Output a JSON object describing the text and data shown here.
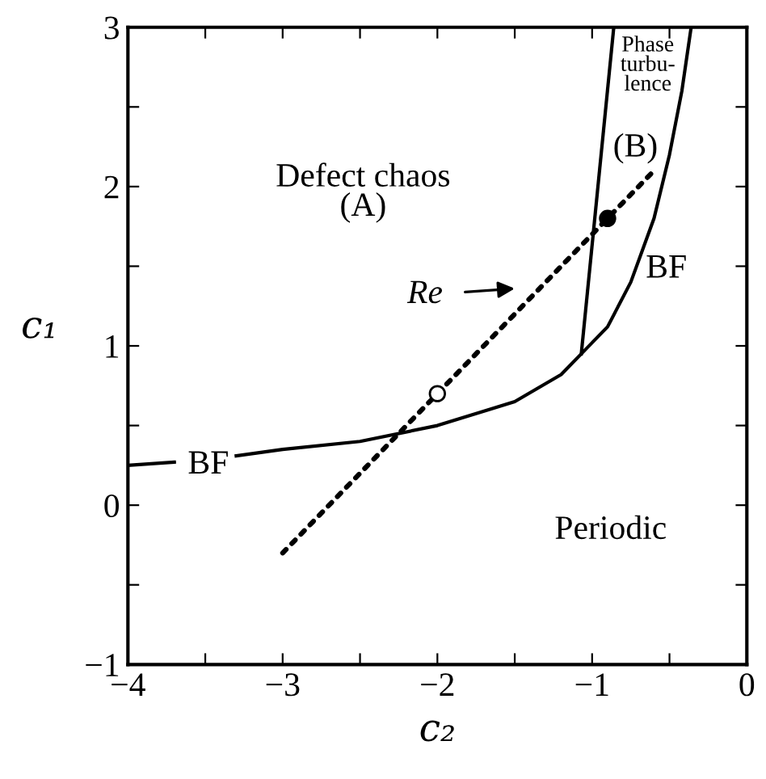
{
  "chart_data": {
    "type": "line",
    "xlabel": "c₂",
    "ylabel": "c₁",
    "xlim": [
      -4,
      0
    ],
    "ylim": [
      -1,
      3
    ],
    "xticks": [
      -4,
      {
        "value": -3.5,
        "label": null
      },
      -3,
      {
        "value": -2.5,
        "label": null
      },
      -2,
      {
        "value": -1.5,
        "label": null
      },
      -1,
      {
        "value": -0.5,
        "label": null
      },
      0
    ],
    "yticks": [
      -1,
      {
        "value": -0.5,
        "label": null
      },
      0,
      {
        "value": 0.5,
        "label": null
      },
      1,
      {
        "value": 1.5,
        "label": null
      },
      2,
      {
        "value": 2.5,
        "label": null
      },
      3
    ],
    "series": [
      {
        "color": "#000000",
        "line_style": "solid",
        "x": [
          -4,
          -3.7,
          -3.5,
          -3.3,
          -3,
          -2.5,
          -2,
          -1.5,
          -1.2,
          -1.07,
          -0.9,
          -0.75,
          -0.6,
          -0.5,
          -0.42,
          -0.36
        ],
        "values": [
          0.25,
          0.27,
          null,
          0.31,
          0.35,
          0.4,
          0.5,
          0.65,
          0.82,
          0.95,
          1.12,
          1.4,
          1.8,
          2.2,
          2.6,
          3.0
        ]
      },
      {
        "color": "#000000",
        "line_style": "solid",
        "x": [
          -1.07,
          -0.86
        ],
        "values": [
          0.95,
          3.0
        ]
      },
      {
        "color": "#000000",
        "line_style": "dotted",
        "x": [
          -3,
          -0.6
        ],
        "values": [
          -0.3,
          2.1
        ]
      },
      {
        "type": "scatter",
        "color": "#ffffff",
        "marker": "circle",
        "x": [
          -2
        ],
        "values": [
          0.7
        ]
      },
      {
        "type": "scatter",
        "color": "#000000",
        "marker": "circle",
        "x": [
          -0.9
        ],
        "values": [
          1.8
        ]
      }
    ],
    "annotations": [
      "Defect chaos\n(A)",
      "Phase\nturbu-\nlence",
      "(B)",
      "BF",
      "BF",
      "Periodic",
      "Re"
    ]
  }
}
